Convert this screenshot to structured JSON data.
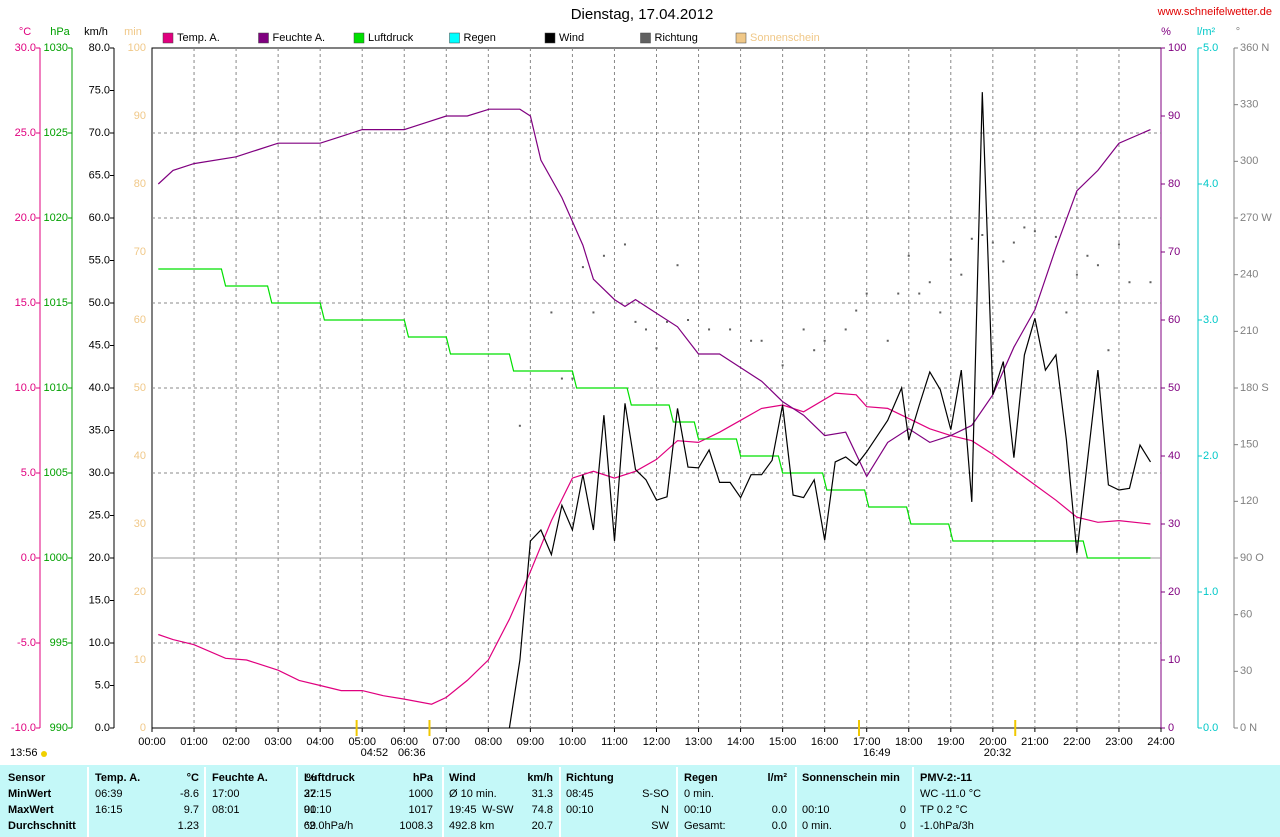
{
  "chart_data": {
    "type": "line",
    "title": "Dienstag, 17.04.2012",
    "source": "www.schneifelwetter.de",
    "timestamp": "13:56",
    "grid": true,
    "xlim": [
      0,
      24
    ],
    "xticks": [
      {
        "value": 0,
        "label": "00:00"
      },
      {
        "value": 1,
        "label": "01:00"
      },
      {
        "value": 2,
        "label": "02:00"
      },
      {
        "value": 3,
        "label": "03:00"
      },
      {
        "value": 4,
        "label": "04:00"
      },
      {
        "value": 5,
        "label": "05:00"
      },
      {
        "value": 6,
        "label": "06:00"
      },
      {
        "value": 7,
        "label": "07:00"
      },
      {
        "value": 8,
        "label": "08:00"
      },
      {
        "value": 9,
        "label": "09:00"
      },
      {
        "value": 10,
        "label": "10:00"
      },
      {
        "value": 11,
        "label": "11:00"
      },
      {
        "value": 12,
        "label": "12:00"
      },
      {
        "value": 13,
        "label": "13:00"
      },
      {
        "value": 14,
        "label": "14:00"
      },
      {
        "value": 15,
        "label": "15:00"
      },
      {
        "value": 16,
        "label": "16:00"
      },
      {
        "value": 17,
        "label": "17:00"
      },
      {
        "value": 18,
        "label": "18:00"
      },
      {
        "value": 19,
        "label": "19:00"
      },
      {
        "value": 20,
        "label": "20:00"
      },
      {
        "value": 21,
        "label": "21:00"
      },
      {
        "value": 22,
        "label": "22:00"
      },
      {
        "value": 23,
        "label": "23:00"
      },
      {
        "value": 24,
        "label": "24:00"
      }
    ],
    "axes": [
      {
        "label": "°C",
        "color": "#e0007f",
        "lim": [
          -10,
          30
        ],
        "ticks": [
          {
            "value": -10,
            "label": "-10.0"
          },
          {
            "value": -5,
            "label": "-5.0"
          },
          {
            "value": 0,
            "label": "0.0"
          },
          {
            "value": 5,
            "label": "5.0"
          },
          {
            "value": 10,
            "label": "10.0"
          },
          {
            "value": 15,
            "label": "15.0"
          },
          {
            "value": 20,
            "label": "20.0"
          },
          {
            "value": 25,
            "label": "25.0"
          },
          {
            "value": 30,
            "label": "30.0"
          }
        ]
      },
      {
        "label": "hPa",
        "color": "#00a000",
        "lim": [
          990,
          1030
        ],
        "ticks": [
          990,
          995,
          1000,
          1005,
          1010,
          1015,
          1020,
          1025,
          1030
        ]
      },
      {
        "label": "km/h",
        "color": "#000000",
        "lim": [
          0,
          80
        ],
        "ticks": [
          {
            "value": 0,
            "label": "0.0"
          },
          {
            "value": 5,
            "label": "5.0"
          },
          {
            "value": 10,
            "label": "10.0"
          },
          {
            "value": 15,
            "label": "15.0"
          },
          {
            "value": 20,
            "label": "20.0"
          },
          {
            "value": 25,
            "label": "25.0"
          },
          {
            "value": 30,
            "label": "30.0"
          },
          {
            "value": 35,
            "label": "35.0"
          },
          {
            "value": 40,
            "label": "40.0"
          },
          {
            "value": 45,
            "label": "45.0"
          },
          {
            "value": 50,
            "label": "50.0"
          },
          {
            "value": 55,
            "label": "55.0"
          },
          {
            "value": 60,
            "label": "60.0"
          },
          {
            "value": 65,
            "label": "65.0"
          },
          {
            "value": 70,
            "label": "70.0"
          },
          {
            "value": 75,
            "label": "75.0"
          },
          {
            "value": 80,
            "label": "80.0"
          }
        ]
      },
      {
        "label": "min",
        "color": "#f0c888",
        "lim": [
          0,
          100
        ],
        "ticks": [
          0,
          10,
          20,
          30,
          40,
          50,
          60,
          70,
          80,
          90,
          100
        ]
      },
      {
        "label": "%",
        "color": "#800080",
        "lim": [
          0,
          100
        ],
        "ticks": [
          0,
          10,
          20,
          30,
          40,
          50,
          60,
          70,
          80,
          90,
          100
        ]
      },
      {
        "label": "l/m²",
        "color": "#00c8c8",
        "lim": [
          0,
          5
        ],
        "ticks": [
          {
            "value": 0,
            "label": "0.0"
          },
          {
            "value": 1,
            "label": "1.0"
          },
          {
            "value": 2,
            "label": "2.0"
          },
          {
            "value": 3,
            "label": "3.0"
          },
          {
            "value": 4,
            "label": "4.0"
          },
          {
            "value": 5,
            "label": "5.0"
          }
        ]
      },
      {
        "label": "°",
        "color": "#808080",
        "lim": [
          0,
          360
        ],
        "ticks": [
          {
            "value": 0,
            "label": "0 N"
          },
          30,
          60,
          {
            "value": 90,
            "label": "90 O"
          },
          120,
          150,
          {
            "value": 180,
            "label": "180 S"
          },
          210,
          240,
          {
            "value": 270,
            "label": "270 W"
          },
          300,
          330,
          {
            "value": 360,
            "label": "360 N"
          }
        ]
      }
    ],
    "series": [
      {
        "name": "Temp. A.",
        "color": "#e0007f",
        "axis": 0,
        "style": "line",
        "x": [
          0.15,
          0.5,
          1,
          1.75,
          2.25,
          3,
          3.5,
          4,
          4.5,
          5,
          5.5,
          6,
          6.65,
          7,
          7.5,
          8,
          8.5,
          9,
          9.5,
          10,
          10.5,
          11,
          11.5,
          12,
          12.5,
          13,
          13.5,
          14,
          14.5,
          15,
          15.5,
          16.25,
          16.75,
          17,
          17.5,
          18,
          18.5,
          19,
          19.5,
          20,
          20.5,
          21,
          21.5,
          22,
          22.5,
          23,
          23.75
        ],
        "values": [
          -4.5,
          -4.8,
          -5.1,
          -5.9,
          -6.0,
          -6.6,
          -7.2,
          -7.5,
          -7.8,
          -7.8,
          -8.1,
          -8.3,
          -8.6,
          -8.2,
          -7.2,
          -6.0,
          -3.6,
          -0.8,
          2.2,
          4.7,
          5.1,
          4.7,
          5.1,
          5.8,
          6.9,
          6.8,
          7.4,
          8.1,
          8.8,
          9.0,
          8.6,
          9.7,
          9.6,
          8.9,
          8.8,
          8.2,
          7.6,
          7.2,
          6.9,
          6.1,
          5.2,
          4.3,
          3.4,
          2.4,
          2.1,
          2.2,
          2.0
        ]
      },
      {
        "name": "Feuchte A.",
        "color": "#800080",
        "axis": 4,
        "style": "line",
        "x": [
          0.15,
          0.5,
          1,
          2,
          2.5,
          3,
          4,
          4.5,
          5,
          6,
          6.5,
          7,
          7.5,
          8.02,
          8.75,
          9,
          9.25,
          9.75,
          10.25,
          10.5,
          11,
          11.25,
          11.5,
          12,
          12.5,
          13,
          13.5,
          14,
          14.5,
          15,
          15.5,
          16,
          16.5,
          17,
          17.5,
          18,
          18.5,
          19,
          19.5,
          20,
          20.5,
          21,
          21.5,
          22,
          22.5,
          23,
          23.75
        ],
        "values": [
          80,
          82,
          83,
          84,
          85,
          86,
          86,
          87,
          88,
          88,
          89,
          90,
          90,
          91,
          91,
          90,
          83.5,
          78,
          71,
          66,
          63,
          62,
          63,
          61,
          59,
          55,
          55,
          53,
          51,
          48,
          46,
          43,
          43.5,
          37,
          42,
          44,
          42,
          43,
          44.5,
          49,
          56,
          61.5,
          70.6,
          79,
          82,
          86,
          88
        ]
      },
      {
        "name": "Luftdruck",
        "color": "#00e000",
        "axis": 1,
        "style": "line",
        "x": [
          0.15,
          1.65,
          1.75,
          2.75,
          2.85,
          4.0,
          4.1,
          6.0,
          6.1,
          7.0,
          7.1,
          8.5,
          8.6,
          10.0,
          10.1,
          11.3,
          11.4,
          12.3,
          12.4,
          12.9,
          13.0,
          13.9,
          14.0,
          14.9,
          15.0,
          15.95,
          16.05,
          16.95,
          17.05,
          17.95,
          18.05,
          18.95,
          19.05,
          22.15,
          22.25,
          23.75
        ],
        "values": [
          1017,
          1017,
          1016,
          1016,
          1015,
          1015,
          1014,
          1014,
          1013,
          1013,
          1012,
          1012,
          1011,
          1011,
          1010,
          1010,
          1009,
          1009,
          1008,
          1008,
          1007,
          1007,
          1006,
          1006,
          1005,
          1005,
          1004,
          1004,
          1003,
          1003,
          1002,
          1002,
          1001,
          1001,
          1000,
          1000
        ]
      },
      {
        "name": "Regen",
        "color": "#00ffff",
        "axis": 5,
        "style": "line",
        "x": [],
        "values": []
      },
      {
        "name": "Wind",
        "color": "#000000",
        "axis": 2,
        "style": "line",
        "x": [
          8.5,
          8.75,
          9,
          9.25,
          9.5,
          9.75,
          10,
          10.25,
          10.5,
          10.75,
          11,
          11.25,
          11.5,
          11.75,
          12,
          12.25,
          12.5,
          12.75,
          13,
          13.25,
          13.5,
          13.75,
          14,
          14.25,
          14.5,
          14.75,
          15,
          15.25,
          15.5,
          15.75,
          16,
          16.25,
          16.5,
          16.75,
          17,
          17.5,
          17.83,
          18,
          18.25,
          18.5,
          18.75,
          19,
          19.25,
          19.5,
          19.75,
          20,
          20.25,
          20.5,
          20.75,
          21,
          21.25,
          21.5,
          21.75,
          22,
          22.5,
          22.75,
          23,
          23.25,
          23.5,
          23.75
        ],
        "values": [
          0,
          8,
          22,
          23.3,
          20.4,
          26.2,
          23.3,
          29.8,
          23.3,
          36.8,
          22,
          38.2,
          30.4,
          29.2,
          26.8,
          27.2,
          37.6,
          30.7,
          30.6,
          32.7,
          28.9,
          28.9,
          27.1,
          29.8,
          29.8,
          31.5,
          38,
          27.4,
          27.1,
          29.2,
          22.1,
          31.3,
          31.9,
          30.9,
          32.5,
          36.2,
          40,
          33.9,
          38,
          41.9,
          39.8,
          35.1,
          42.1,
          26.6,
          74.8,
          39.2,
          43.1,
          31.8,
          43.9,
          48.2,
          42.1,
          43.9,
          33.9,
          20.6,
          42.1,
          28.6,
          28,
          28.2,
          33.3,
          31.3
        ]
      },
      {
        "name": "Richtung",
        "color": "#606060",
        "axis": 6,
        "style": "dots",
        "x": [
          8.75,
          9.5,
          9.75,
          10,
          10.25,
          10.5,
          10.75,
          11.25,
          11.5,
          11.75,
          12,
          12.25,
          12.5,
          12.75,
          13.25,
          13.75,
          14.25,
          14.5,
          15,
          15.5,
          15.75,
          16,
          16.5,
          16.75,
          17,
          17.5,
          17.75,
          18,
          18.25,
          18.5,
          18.75,
          19,
          19.25,
          19.5,
          19.75,
          20,
          20.25,
          20.5,
          20.75,
          21,
          21.5,
          21.75,
          22,
          22.25,
          22.5,
          22.75,
          23,
          23.25,
          23.75
        ],
        "values": [
          160,
          220,
          185,
          185,
          244,
          220,
          250,
          256,
          215,
          211,
          201,
          215,
          245,
          216,
          211,
          211,
          205,
          205,
          192,
          211,
          200,
          205,
          211,
          221,
          230,
          205,
          230,
          250,
          230,
          236,
          220,
          248,
          240,
          259,
          261,
          257,
          247,
          257,
          265,
          263,
          260,
          220,
          240,
          250,
          245,
          200,
          256,
          236,
          236
        ]
      },
      {
        "name": "Sonnenschein",
        "color": "#f0c888",
        "axis": 3,
        "style": "line",
        "x": [],
        "values": []
      }
    ],
    "annotations": [
      {
        "x": 4.867,
        "label": "04:52"
      },
      {
        "x": 6.6,
        "label": "06:36"
      },
      {
        "x": 16.817,
        "label": "16:49"
      },
      {
        "x": 20.533,
        "label": "20:32"
      }
    ]
  },
  "stats_table": {
    "row_labels": [
      "Sensor",
      "MinWert",
      "MaxWert",
      "Durchschnitt"
    ],
    "groups": [
      {
        "title": "Temp. A.",
        "unit": "°C",
        "cells": [
          {
            "left": "06:39",
            "right": "-8.6"
          },
          {
            "left": "16:15",
            "right": "9.7"
          },
          {
            "right": "1.23"
          }
        ]
      },
      {
        "title": "Feuchte A.",
        "unit": "%",
        "cells": [
          {
            "left": "17:00",
            "right": "37"
          },
          {
            "left": "08:01",
            "right": "91"
          },
          {
            "right": "69"
          }
        ]
      },
      {
        "title": "Luftdruck",
        "unit": "hPa",
        "cells": [
          {
            "left": "22:15",
            "right": "1000"
          },
          {
            "left": "00:10",
            "right": "1017"
          },
          {
            "left": "^2.0hPa/h",
            "right": "1008.3"
          }
        ]
      },
      {
        "title": "Wind",
        "unit": "km/h",
        "cells": [
          {
            "left": "Ø 10 min.",
            "right": "31.3"
          },
          {
            "left": "19:45",
            "mid": "W-SW",
            "right": "74.8"
          },
          {
            "left": "492.8 km",
            "right": "20.7"
          }
        ]
      },
      {
        "title": "Richtung",
        "cells": [
          {
            "left": "08:45",
            "right": "S-SO"
          },
          {
            "left": "00:10",
            "right": "N"
          },
          {
            "right": "SW"
          }
        ]
      },
      {
        "title": "Regen",
        "unit": "l/m²",
        "cells": [
          {
            "left": "0 min."
          },
          {
            "left": "00:10",
            "right": "0.0"
          },
          {
            "left": "Gesamt:",
            "right": "0.0"
          }
        ]
      },
      {
        "title": "Sonnenschein min",
        "cells": [
          {},
          {
            "left": "00:10",
            "right": "0"
          },
          {
            "left": "0 min.",
            "right": "0"
          }
        ]
      },
      {
        "title": "PMV-2:-11",
        "cells": [
          {
            "left": "WC -11.0 °C"
          },
          {
            "left": "TP 0.2 °C"
          },
          {
            "left": "-1.0hPa/3h"
          }
        ]
      }
    ]
  }
}
